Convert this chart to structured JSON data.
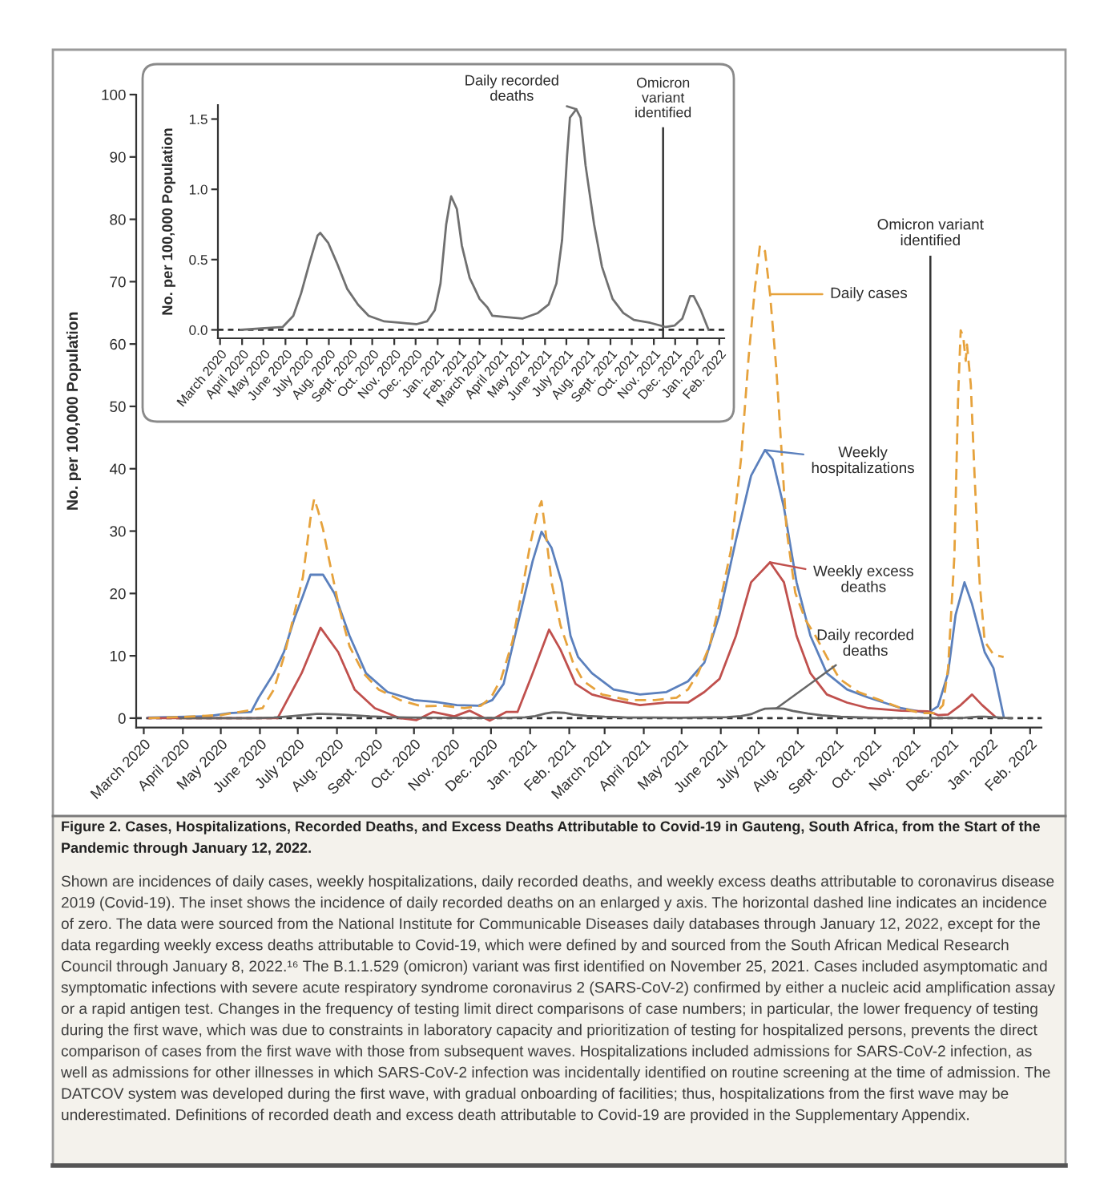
{
  "chart_data": [
    {
      "type": "line",
      "title": "Figure 2. Cases, Hospitalizations, Recorded Deaths, and Excess Deaths Attributable to Covid-19 in Gauteng, South Africa, from the Start of the Pandemic through January 12, 2022.",
      "annotations": [
        "Shown are incidences of daily cases, weekly hospitalizations, daily recorded deaths, and weekly excess deaths attributable to coronavirus disease 2019 (Covid-19). The inset shows the incidence of daily recorded deaths on an enlarged y axis. The horizontal dashed line indicates an incidence of zero. The data were sourced from the National Institute for Communicable Diseases daily databases through January 12, 2022, except for the data regarding weekly excess deaths attributable to Covid-19, which were defined by and sourced from the South African Medical Research Council through January 8, 2022.¹⁶ The B.1.1.529 (omicron) variant was first identified on November 25, 2021. Cases included asymptomatic and symptomatic infections with severe acute respiratory syndrome coronavirus 2 (SARS-CoV-2) confirmed by either a nucleic acid amplification assay or a rapid antigen test. Changes in the frequency of testing limit direct comparisons of case numbers; in particular, the lower frequency of testing during the first wave, which was due to constraints in laboratory capacity and prioritization of testing for hospitalized persons, prevents the direct comparison of cases from the first wave with those from subsequent waves. Hospitalizations included admissions for SARS-CoV-2 infection, as well as admissions for other illnesses in which SARS-CoV-2 infection was incidentally identified on routine screening at the time of admission. The DATCOV system was developed during the first wave, with gradual onboarding of facilities; thus, hospitalizations from the first wave may be underestimated. Definitions of recorded death and excess death attributable to Covid-19 are provided in the Supplementary Appendix."
      ],
      "ylabel": "No. per 100,000 Population",
      "legend": "right",
      "xlim": [
        "2020-02-24",
        "2022-02-10"
      ],
      "xticks": [
        {
          "value": "2020-03-01",
          "label": "March 2020"
        },
        {
          "value": "2020-04-01",
          "label": "April 2020"
        },
        {
          "value": "2020-05-01",
          "label": "May 2020"
        },
        {
          "value": "2020-06-01",
          "label": "June 2020"
        },
        {
          "value": "2020-07-01",
          "label": "July 2020"
        },
        {
          "value": "2020-08-01",
          "label": "Aug. 2020"
        },
        {
          "value": "2020-09-01",
          "label": "Sept. 2020"
        },
        {
          "value": "2020-10-01",
          "label": "Oct. 2020"
        },
        {
          "value": "2020-11-01",
          "label": "Nov. 2020"
        },
        {
          "value": "2020-12-01",
          "label": "Dec. 2020"
        },
        {
          "value": "2021-01-01",
          "label": "Jan. 2021"
        },
        {
          "value": "2021-02-01",
          "label": "Feb. 2021"
        },
        {
          "value": "2021-03-01",
          "label": "March 2021"
        },
        {
          "value": "2021-04-01",
          "label": "April 2021"
        },
        {
          "value": "2021-05-01",
          "label": "May 2021"
        },
        {
          "value": "2021-06-01",
          "label": "June 2021"
        },
        {
          "value": "2021-07-01",
          "label": "July 2021"
        },
        {
          "value": "2021-08-01",
          "label": "Aug. 2021"
        },
        {
          "value": "2021-09-01",
          "label": "Sept. 2021"
        },
        {
          "value": "2021-10-01",
          "label": "Oct. 2021"
        },
        {
          "value": "2021-11-01",
          "label": "Nov. 2021"
        },
        {
          "value": "2021-12-01",
          "label": "Dec. 2021"
        },
        {
          "value": "2022-01-01",
          "label": "Jan. 2022"
        },
        {
          "value": "2022-02-01",
          "label": "Feb. 2022"
        }
      ],
      "ylim": [
        -1.5,
        100
      ],
      "yticks": [
        0,
        10,
        20,
        30,
        40,
        50,
        60,
        70,
        80,
        90,
        100
      ],
      "series": [
        {
          "name": "Daily cases",
          "color": "#e6a23c",
          "line_style": "dashed",
          "x": [
            "2020-03-05",
            "2020-04-01",
            "2020-05-01",
            "2020-06-03",
            "2020-06-12",
            "2020-06-20",
            "2020-06-28",
            "2020-07-05",
            "2020-07-11",
            "2020-07-14",
            "2020-07-17",
            "2020-07-21",
            "2020-07-26",
            "2020-08-03",
            "2020-08-11",
            "2020-08-22",
            "2020-09-03",
            "2020-09-20",
            "2020-10-07",
            "2020-10-24",
            "2020-11-10",
            "2020-11-23",
            "2020-12-01",
            "2020-12-09",
            "2020-12-18",
            "2020-12-26",
            "2021-01-01",
            "2021-01-07",
            "2021-01-10",
            "2021-01-13",
            "2021-01-18",
            "2021-01-25",
            "2021-02-04",
            "2021-02-12",
            "2021-02-27",
            "2021-03-20",
            "2021-04-10",
            "2021-04-27",
            "2021-05-06",
            "2021-05-14",
            "2021-05-23",
            "2021-05-31",
            "2021-06-09",
            "2021-06-17",
            "2021-06-23",
            "2021-06-28",
            "2021-07-02",
            "2021-07-06",
            "2021-07-10",
            "2021-07-15",
            "2021-07-19",
            "2021-07-23",
            "2021-07-30",
            "2021-08-07",
            "2021-08-15",
            "2021-08-24",
            "2021-09-03",
            "2021-09-18",
            "2021-10-05",
            "2021-10-22",
            "2021-11-07",
            "2021-11-18",
            "2021-11-24",
            "2021-11-28",
            "2021-12-03",
            "2021-12-06",
            "2021-12-08",
            "2021-12-10",
            "2021-12-12",
            "2021-12-13",
            "2021-12-16",
            "2021-12-19",
            "2021-12-23",
            "2021-12-27",
            "2022-01-03",
            "2022-01-11"
          ],
          "values": [
            0,
            0.2,
            0.5,
            1.6,
            4.6,
            9.8,
            16.6,
            22.6,
            32,
            35.2,
            33.3,
            30.3,
            25.2,
            17.5,
            11.5,
            7.2,
            4.6,
            2.9,
            1.9,
            2.0,
            1.6,
            2.0,
            3.3,
            6.3,
            12.3,
            20.9,
            27.8,
            33.3,
            34.8,
            30.3,
            21.8,
            14.9,
            8.9,
            6.0,
            3.8,
            2.9,
            2.9,
            3.3,
            4.6,
            7.2,
            11.5,
            18.3,
            26.9,
            41.5,
            57.8,
            68.9,
            75.8,
            74.9,
            68,
            56,
            43.2,
            30.3,
            20.1,
            15.8,
            13.2,
            9.8,
            6.3,
            4.2,
            2.9,
            1.6,
            0.8,
            0.8,
            2.1,
            8,
            26,
            51.8,
            62.2,
            61.2,
            57.3,
            59.9,
            53.5,
            38.9,
            21.8,
            12.3,
            10.2,
            9.8
          ]
        },
        {
          "name": "Weekly\nhospitalizations",
          "color": "#5b80bd",
          "line_style": "solid",
          "x": [
            "2020-03-05",
            "2020-04-20",
            "2020-05-08",
            "2020-05-25",
            "2020-05-31",
            "2020-06-12",
            "2020-06-20",
            "2020-06-28",
            "2020-07-05",
            "2020-07-11",
            "2020-07-21",
            "2020-07-30",
            "2020-08-11",
            "2020-08-24",
            "2020-09-10",
            "2020-10-01",
            "2020-10-18",
            "2020-11-04",
            "2020-11-21",
            "2020-12-02",
            "2020-12-11",
            "2020-12-24",
            "2021-01-03",
            "2021-01-10",
            "2021-01-18",
            "2021-01-26",
            "2021-02-02",
            "2021-02-08",
            "2021-02-19",
            "2021-03-08",
            "2021-03-29",
            "2021-04-19",
            "2021-05-06",
            "2021-05-19",
            "2021-05-31",
            "2021-06-13",
            "2021-06-25",
            "2021-07-06",
            "2021-07-12",
            "2021-07-21",
            "2021-07-31",
            "2021-08-11",
            "2021-08-24",
            "2021-09-09",
            "2021-09-26",
            "2021-10-22",
            "2021-11-12",
            "2021-11-20",
            "2021-11-28",
            "2021-12-04",
            "2021-12-11",
            "2021-12-17",
            "2021-12-27",
            "2022-01-03",
            "2022-01-11"
          ],
          "values": [
            0.1,
            0.3,
            0.8,
            1.0,
            3.3,
            7.2,
            10.6,
            15.8,
            19.6,
            23,
            23,
            20,
            13.2,
            7.2,
            4.2,
            2.9,
            2.6,
            2.1,
            2.0,
            2.9,
            5.5,
            16.6,
            25.2,
            29.9,
            27.3,
            21.8,
            13.2,
            9.8,
            7.2,
            4.6,
            3.8,
            4.2,
            5.9,
            8.9,
            16.6,
            28.6,
            38.9,
            43,
            41.5,
            33.8,
            21.8,
            13.2,
            7.2,
            4.6,
            3.3,
            1.6,
            0.8,
            1.9,
            7.2,
            16.6,
            21.8,
            18.3,
            10.6,
            8,
            0.3
          ]
        },
        {
          "name": "Weekly excess\ndeaths",
          "color": "#c0504d",
          "line_style": "solid",
          "x": [
            "2020-03-05",
            "2020-06-15",
            "2020-07-04",
            "2020-07-19",
            "2020-08-02",
            "2020-08-15",
            "2020-08-31",
            "2020-09-20",
            "2020-10-03",
            "2020-10-16",
            "2020-11-02",
            "2020-11-14",
            "2020-11-30",
            "2020-12-13",
            "2020-12-22",
            "2021-01-03",
            "2021-01-16",
            "2021-01-25",
            "2021-02-06",
            "2021-02-19",
            "2021-03-08",
            "2021-03-29",
            "2021-04-19",
            "2021-05-06",
            "2021-05-19",
            "2021-05-31",
            "2021-06-13",
            "2021-06-25",
            "2021-07-10",
            "2021-07-21",
            "2021-07-31",
            "2021-08-11",
            "2021-08-24",
            "2021-09-09",
            "2021-09-26",
            "2021-10-22",
            "2021-11-12",
            "2021-11-20",
            "2021-11-28",
            "2021-12-08",
            "2021-12-17",
            "2021-12-25",
            "2022-01-04"
          ],
          "values": [
            0,
            0,
            7.2,
            14.5,
            10.6,
            4.6,
            1.6,
            0,
            -0.3,
            1,
            0.3,
            1.2,
            -0.4,
            1,
            1,
            7.2,
            14.2,
            11,
            5.5,
            3.8,
            2.9,
            2.1,
            2.5,
            2.5,
            4.2,
            6.3,
            13.2,
            21.8,
            25,
            21.8,
            13.2,
            7.2,
            3.8,
            2.5,
            1.6,
            1.2,
            1.1,
            0.5,
            0.6,
            2.1,
            3.8,
            2.1,
            0.3
          ]
        },
        {
          "name": "Daily recorded\ndeaths",
          "color": "#666666",
          "line_style": "solid",
          "x": [
            "2020-03-30",
            "2020-05-28",
            "2020-06-12",
            "2020-06-23",
            "2020-07-05",
            "2020-07-16",
            "2020-07-20",
            "2020-07-31",
            "2020-08-12",
            "2020-08-27",
            "2020-09-11",
            "2020-09-26",
            "2020-10-18",
            "2020-11-10",
            "2020-12-02",
            "2020-12-17",
            "2020-12-28",
            "2021-01-05",
            "2021-01-13",
            "2021-01-18",
            "2021-01-20",
            "2021-01-28",
            "2021-02-04",
            "2021-02-15",
            "2021-03-01",
            "2021-03-12",
            "2021-03-19",
            "2021-04-08",
            "2021-04-30",
            "2021-05-22",
            "2021-06-06",
            "2021-06-17",
            "2021-06-25",
            "2021-07-02",
            "2021-07-06",
            "2021-07-15",
            "2021-07-21",
            "2021-07-28",
            "2021-08-09",
            "2021-08-20",
            "2021-09-04",
            "2021-09-19",
            "2021-10-04",
            "2021-10-27",
            "2021-11-18",
            "2021-11-30",
            "2021-12-11",
            "2021-12-22",
            "2021-12-27",
            "2022-01-06",
            "2022-01-17"
          ],
          "values": [
            0,
            0.02,
            0.1,
            0.26,
            0.48,
            0.67,
            0.69,
            0.62,
            0.48,
            0.29,
            0.18,
            0.1,
            0.06,
            0.05,
            0.04,
            0.06,
            0.14,
            0.33,
            0.75,
            0.9,
            0.95,
            0.86,
            0.6,
            0.37,
            0.22,
            0.16,
            0.1,
            0.09,
            0.08,
            0.12,
            0.18,
            0.33,
            0.64,
            1.24,
            1.51,
            1.57,
            1.51,
            1.17,
            0.75,
            0.45,
            0.22,
            0.12,
            0.07,
            0.05,
            0.02,
            0.03,
            0.08,
            0.24,
            0.24,
            0.14,
            0
          ]
        }
      ],
      "ref_lines": [
        {
          "axis": "y",
          "value": 0,
          "line_style": "dashed",
          "color": "#333333"
        },
        {
          "axis": "x",
          "value": "2021-11-14",
          "label": "Omicron variant\nidentified",
          "color": "#333333",
          "line_style": "solid"
        }
      ]
    },
    {
      "type": "line",
      "ylabel": "No. per 100,000 Population",
      "legend": "top",
      "xlim": [
        "2020-02-27",
        "2022-02-08"
      ],
      "xticks": [
        {
          "value": "2020-03-01",
          "label": "March 2020"
        },
        {
          "value": "2020-04-01",
          "label": "April 2020"
        },
        {
          "value": "2020-05-01",
          "label": "May 2020"
        },
        {
          "value": "2020-06-01",
          "label": "June 2020"
        },
        {
          "value": "2020-07-01",
          "label": "July 2020"
        },
        {
          "value": "2020-08-01",
          "label": "Aug. 2020"
        },
        {
          "value": "2020-09-01",
          "label": "Sept. 2020"
        },
        {
          "value": "2020-10-01",
          "label": "Oct. 2020"
        },
        {
          "value": "2020-11-01",
          "label": "Nov. 2020"
        },
        {
          "value": "2020-12-01",
          "label": "Dec. 2020"
        },
        {
          "value": "2021-01-01",
          "label": "Jan. 2021"
        },
        {
          "value": "2021-02-01",
          "label": "Feb. 2021"
        },
        {
          "value": "2021-03-01",
          "label": "March 2021"
        },
        {
          "value": "2021-04-01",
          "label": "April 2021"
        },
        {
          "value": "2021-05-01",
          "label": "May 2021"
        },
        {
          "value": "2021-06-01",
          "label": "June 2021"
        },
        {
          "value": "2021-07-01",
          "label": "July 2021"
        },
        {
          "value": "2021-08-01",
          "label": "Aug. 2021"
        },
        {
          "value": "2021-09-01",
          "label": "Sept. 2021"
        },
        {
          "value": "2021-10-01",
          "label": "Oct. 2021"
        },
        {
          "value": "2021-11-01",
          "label": "Nov. 2021"
        },
        {
          "value": "2021-12-01",
          "label": "Dec. 2021"
        },
        {
          "value": "2022-01-01",
          "label": "Jan. 2022"
        },
        {
          "value": "2022-02-01",
          "label": "Feb. 2022"
        }
      ],
      "ylim": [
        -0.06,
        1.6
      ],
      "yticks": [
        {
          "value": 0,
          "label": "0.0"
        },
        0.5,
        {
          "value": 1,
          "label": "1.0"
        },
        1.5
      ],
      "series": [
        {
          "name": "Daily recorded\ndeaths",
          "color": "#707070",
          "line_style": "solid",
          "x": [
            "2020-03-30",
            "2020-05-28",
            "2020-06-12",
            "2020-06-23",
            "2020-07-05",
            "2020-07-16",
            "2020-07-20",
            "2020-07-31",
            "2020-08-12",
            "2020-08-27",
            "2020-09-11",
            "2020-09-26",
            "2020-10-18",
            "2020-11-10",
            "2020-12-02",
            "2020-12-17",
            "2020-12-28",
            "2021-01-05",
            "2021-01-13",
            "2021-01-18",
            "2021-01-20",
            "2021-01-28",
            "2021-02-04",
            "2021-02-15",
            "2021-03-01",
            "2021-03-12",
            "2021-03-19",
            "2021-04-08",
            "2021-04-30",
            "2021-05-22",
            "2021-06-06",
            "2021-06-17",
            "2021-06-25",
            "2021-07-02",
            "2021-07-06",
            "2021-07-15",
            "2021-07-21",
            "2021-07-28",
            "2021-08-09",
            "2021-08-20",
            "2021-09-04",
            "2021-09-19",
            "2021-10-04",
            "2021-10-27",
            "2021-11-18",
            "2021-11-30",
            "2021-12-11",
            "2021-12-22",
            "2021-12-27",
            "2022-01-06",
            "2022-01-17"
          ],
          "values": [
            0,
            0.02,
            0.1,
            0.26,
            0.48,
            0.67,
            0.69,
            0.62,
            0.48,
            0.29,
            0.18,
            0.1,
            0.06,
            0.05,
            0.04,
            0.06,
            0.14,
            0.33,
            0.75,
            0.9,
            0.95,
            0.86,
            0.6,
            0.37,
            0.22,
            0.16,
            0.1,
            0.09,
            0.08,
            0.12,
            0.18,
            0.33,
            0.64,
            1.24,
            1.51,
            1.57,
            1.51,
            1.17,
            0.75,
            0.45,
            0.22,
            0.12,
            0.07,
            0.05,
            0.02,
            0.03,
            0.08,
            0.24,
            0.24,
            0.14,
            0
          ]
        }
      ],
      "ref_lines": [
        {
          "axis": "y",
          "value": 0,
          "line_style": "dashed",
          "color": "#333333"
        },
        {
          "axis": "x",
          "value": "2021-11-14",
          "label": "Omicron\nvariant\nidentified",
          "color": "#333333",
          "line_style": "solid"
        }
      ]
    }
  ]
}
